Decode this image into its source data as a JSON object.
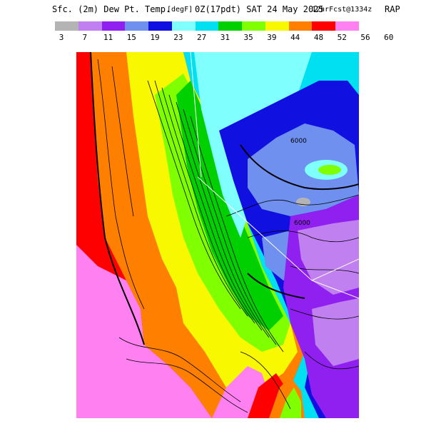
{
  "header": {
    "field": "Sfc. (2m) Dew Pt. Temp.",
    "units": "[degF]",
    "valid": "0Z(17pdt) SAT 24 May 2025",
    "forecast": "12hrFcst@1334z",
    "model": "RAP"
  },
  "colorbar": {
    "labels": [
      "3",
      "7",
      "11",
      "15",
      "19",
      "23",
      "27",
      "31",
      "35",
      "39",
      "44",
      "48",
      "52",
      "56",
      "60"
    ],
    "colors": [
      "#b4b4b4",
      "#c080f0",
      "#9020f0",
      "#7090f0",
      "#1010e0",
      "#80ffff",
      "#00e0f0",
      "#00d000",
      "#80ff00",
      "#f8f800",
      "#ff8000",
      "#ff0000",
      "#ff80f0"
    ]
  },
  "map": {
    "contour_label": "6000"
  }
}
